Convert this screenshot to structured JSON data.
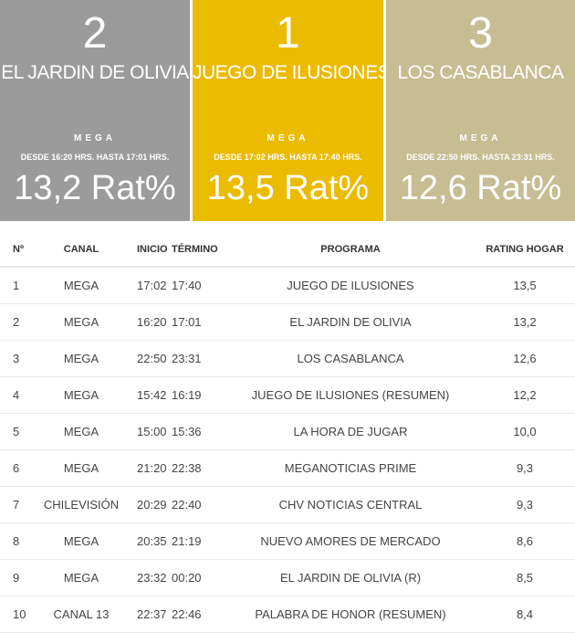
{
  "cards": [
    {
      "rank": "2",
      "program": "EL JARDIN DE OLIVIA",
      "channel": "MEGA",
      "time": "DESDE 16:20 HRS. HASTA 17:01 HRS.",
      "rating": "13,2 Rat%",
      "color": "#9b9b9b"
    },
    {
      "rank": "1",
      "program": "JUEGO DE ILUSIONES",
      "channel": "MEGA",
      "time": "DESDE 17:02 HRS. HASTA 17:40 HRS.",
      "rating": "13,5 Rat%",
      "color": "#ebbb00"
    },
    {
      "rank": "3",
      "program": "LOS CASABLANCA",
      "channel": "MEGA",
      "time": "DESDE 22:50 HRS. HASTA 23:31 HRS.",
      "rating": "12,6 Rat%",
      "color": "#c8bc93"
    }
  ],
  "table": {
    "headers": [
      "Nº",
      "CANAL",
      "INICIO",
      "TÉRMINO",
      "PROGRAMA",
      "RATING HOGAR"
    ],
    "rows": [
      [
        "1",
        "MEGA",
        "17:02",
        "17:40",
        "JUEGO DE ILUSIONES",
        "13,5"
      ],
      [
        "2",
        "MEGA",
        "16:20",
        "17:01",
        "EL JARDIN DE OLIVIA",
        "13,2"
      ],
      [
        "3",
        "MEGA",
        "22:50",
        "23:31",
        "LOS CASABLANCA",
        "12,6"
      ],
      [
        "4",
        "MEGA",
        "15:42",
        "16:19",
        "JUEGO DE ILUSIONES (RESUMEN)",
        "12,2"
      ],
      [
        "5",
        "MEGA",
        "15:00",
        "15:36",
        "LA HORA DE JUGAR",
        "10,0"
      ],
      [
        "6",
        "MEGA",
        "21:20",
        "22:38",
        "MEGANOTICIAS PRIME",
        "9,3"
      ],
      [
        "7",
        "CHILEVISIÓN",
        "20:29",
        "22:40",
        "CHV NOTICIAS CENTRAL",
        "9,3"
      ],
      [
        "8",
        "MEGA",
        "20:35",
        "21:19",
        "NUEVO AMORES DE MERCADO",
        "8,6"
      ],
      [
        "9",
        "MEGA",
        "23:32",
        "00:20",
        "EL JARDIN DE OLIVIA (R)",
        "8,5"
      ],
      [
        "10",
        "CANAL 13",
        "22:37",
        "22:46",
        "PALABRA DE HONOR (RESUMEN)",
        "8,4"
      ]
    ]
  }
}
